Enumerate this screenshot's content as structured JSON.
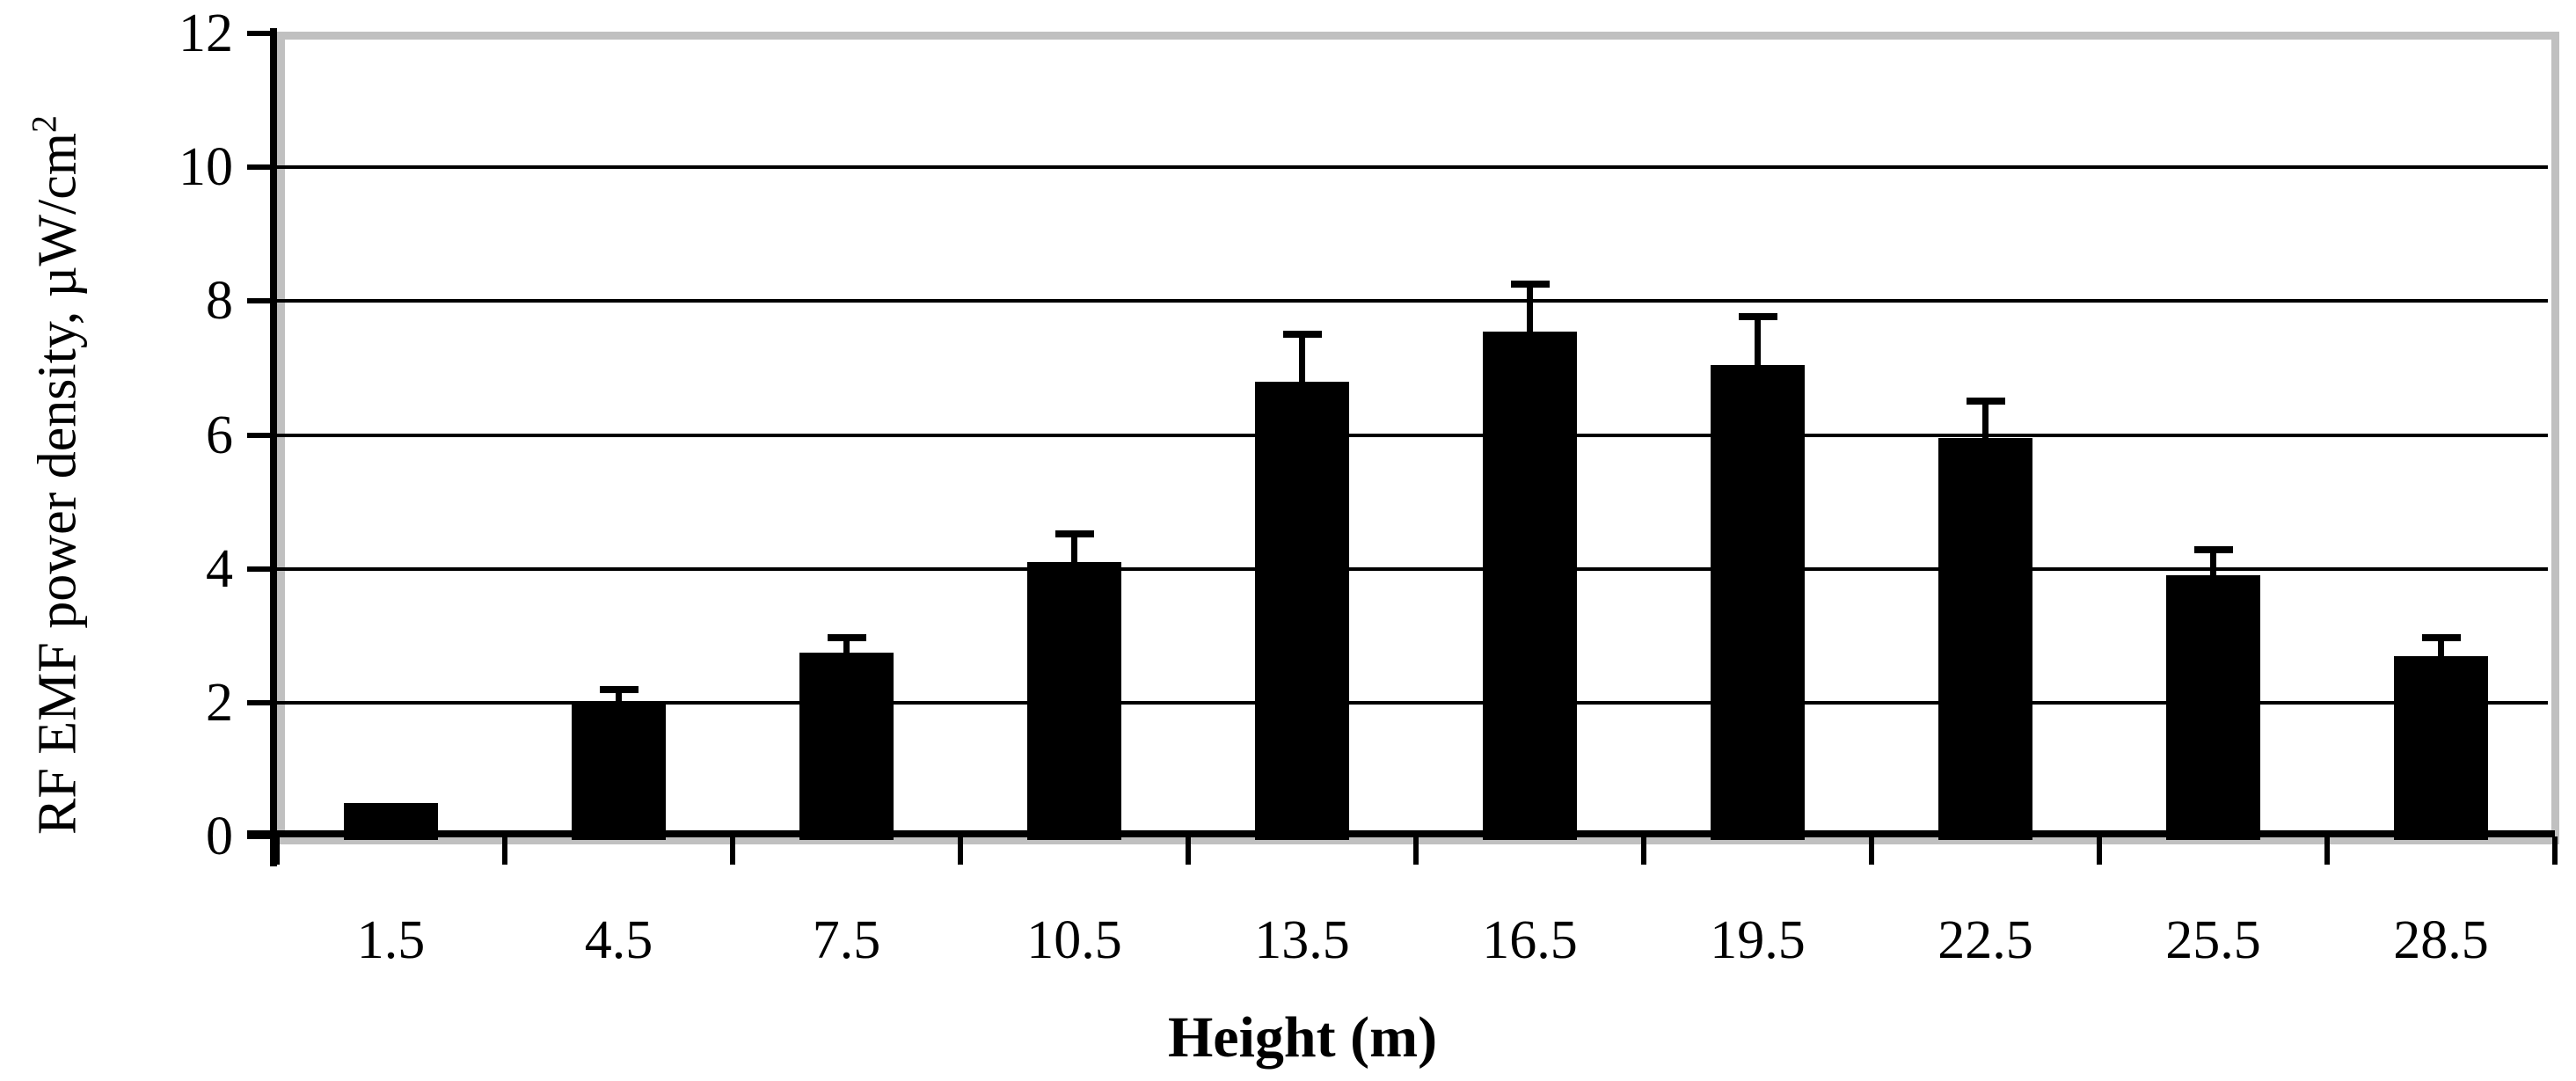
{
  "chart_data": {
    "type": "bar",
    "title": "",
    "xlabel": "Height (m)",
    "ylabel": "RF EMF power density, µW/cm²",
    "ylabel_main": "RF EMF power density, µW/cm",
    "ylabel_sup": "2",
    "categories": [
      "1.5",
      "4.5",
      "7.5",
      "10.5",
      "13.5",
      "16.5",
      "19.5",
      "22.5",
      "25.5",
      "28.5"
    ],
    "values": [
      0.5,
      2.0,
      2.75,
      4.1,
      6.8,
      7.55,
      7.05,
      5.95,
      3.9,
      2.7
    ],
    "errors_upper": [
      0,
      0.2,
      0.22,
      0.42,
      0.7,
      0.7,
      0.72,
      0.55,
      0.38,
      0.27
    ],
    "yticks": [
      0,
      2,
      4,
      6,
      8,
      10,
      12
    ],
    "ylim": [
      0,
      12
    ],
    "grid": true,
    "legend": false,
    "bar_color": "#000000",
    "gridline_color": "#000000",
    "axis_color": "#000000",
    "plot_border_color": "#c0c0c0",
    "background_color": "#ffffff"
  }
}
